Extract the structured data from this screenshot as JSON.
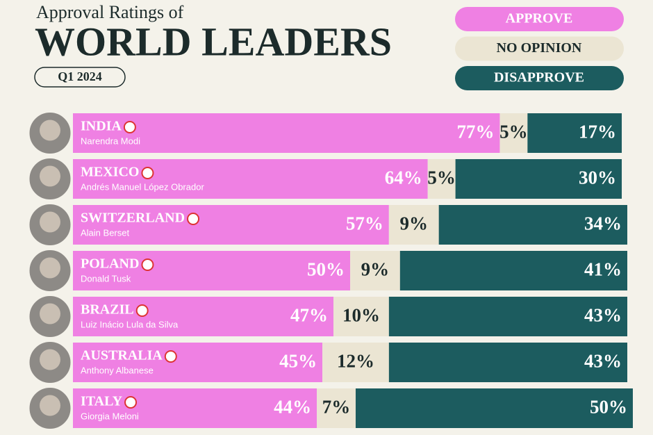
{
  "chart_data": {
    "type": "stacked-bar",
    "supertitle": "Approval Ratings of",
    "title": "WORLD LEADERS",
    "subtitle": "Q1 2024",
    "categories": [
      "INDIA",
      "MEXICO",
      "SWITZERLAND",
      "POLAND",
      "BRAZIL",
      "AUSTRALIA",
      "ITALY"
    ],
    "leaders": [
      "Narendra Modi",
      "Andrés Manuel López Obrador",
      "Alain Berset",
      "Donald Tusk",
      "Luiz Inácio Lula da Silva",
      "Anthony Albanese",
      "Giorgia Meloni"
    ],
    "xlim": [
      0,
      100
    ],
    "series": [
      {
        "name": "APPROVE",
        "color": "#ef80e3",
        "text_color": "#ffffff",
        "values": [
          77,
          64,
          57,
          50,
          47,
          45,
          44
        ],
        "value_labels": [
          "77%",
          "64%",
          "57%",
          "50%",
          "47%",
          "45%",
          "44%"
        ]
      },
      {
        "name": "NO OPINION",
        "color": "#ebe5d3",
        "text_color": "#1c2b2b",
        "values": [
          5,
          5,
          9,
          9,
          10,
          12,
          7
        ],
        "value_labels": [
          "5%",
          "5%",
          "9%",
          "9%",
          "10%",
          "12%",
          "7%"
        ]
      },
      {
        "name": "DISAPPROVE",
        "color": "#1c5c5f",
        "text_color": "#ffffff",
        "values": [
          17,
          30,
          34,
          41,
          43,
          43,
          50
        ],
        "value_labels": [
          "17%",
          "30%",
          "34%",
          "41%",
          "43%",
          "43%",
          "50%"
        ]
      }
    ]
  }
}
